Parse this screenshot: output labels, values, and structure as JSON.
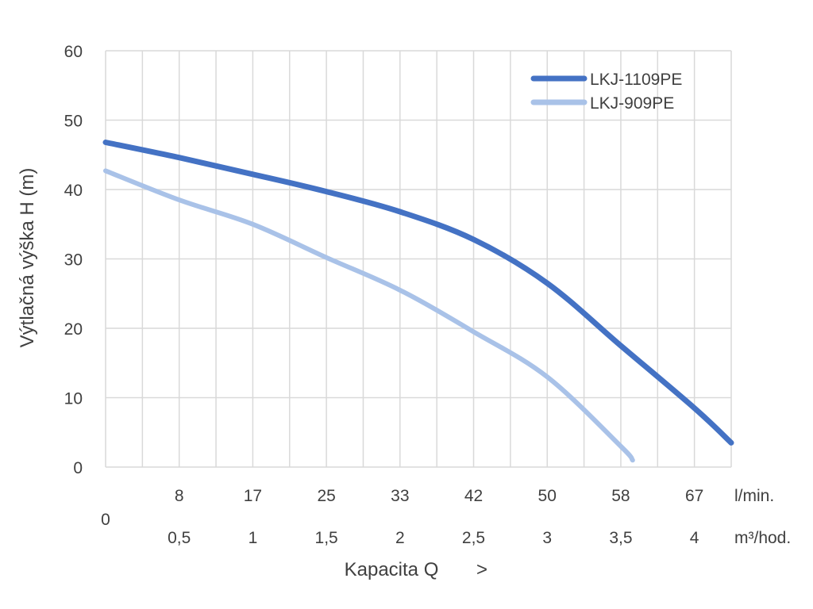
{
  "chart_data": {
    "type": "line",
    "title": "",
    "ylabel": "Výtlačná výška H (m)",
    "xlabel": "Kapacita Q",
    "xlabel_arrow": ">",
    "ylim": [
      0,
      60
    ],
    "yticks": [
      "0",
      "10",
      "20",
      "30",
      "40",
      "50",
      "60"
    ],
    "xlim": [
      0,
      4.25
    ],
    "x_unit": "m³/hod.",
    "grid": true,
    "legend_position": "top-right",
    "x_origin_label": "0",
    "x_ticks": [
      {
        "x": 0.5,
        "lmin": "8",
        "m3h": "0,5"
      },
      {
        "x": 1,
        "lmin": "17",
        "m3h": "1"
      },
      {
        "x": 1.5,
        "lmin": "25",
        "m3h": "1,5"
      },
      {
        "x": 2,
        "lmin": "33",
        "m3h": "2"
      },
      {
        "x": 2.5,
        "lmin": "42",
        "m3h": "2,5"
      },
      {
        "x": 3,
        "lmin": "50",
        "m3h": "3"
      },
      {
        "x": 3.5,
        "lmin": "58",
        "m3h": "3,5"
      },
      {
        "x": 4,
        "lmin": "67",
        "m3h": "4"
      }
    ],
    "x_unit_labels": {
      "lmin": "l/min.",
      "m3h": "m³/hod."
    },
    "series": [
      {
        "name": "LKJ-1109PE",
        "color": "#4472C4",
        "x": [
          0,
          0.5,
          1,
          1.5,
          2,
          2.5,
          3,
          3.5,
          4,
          4.25
        ],
        "y": [
          46.8,
          44.6,
          42.2,
          39.7,
          36.8,
          32.8,
          26.5,
          17.5,
          8.5,
          3.5
        ]
      },
      {
        "name": "LKJ-909PE",
        "color": "#A9C2E8",
        "x": [
          0,
          0.5,
          1,
          1.5,
          2,
          2.5,
          3,
          3.5,
          3.58
        ],
        "y": [
          42.7,
          38.5,
          35,
          30.2,
          25.5,
          19.5,
          13,
          3,
          1
        ]
      }
    ]
  }
}
